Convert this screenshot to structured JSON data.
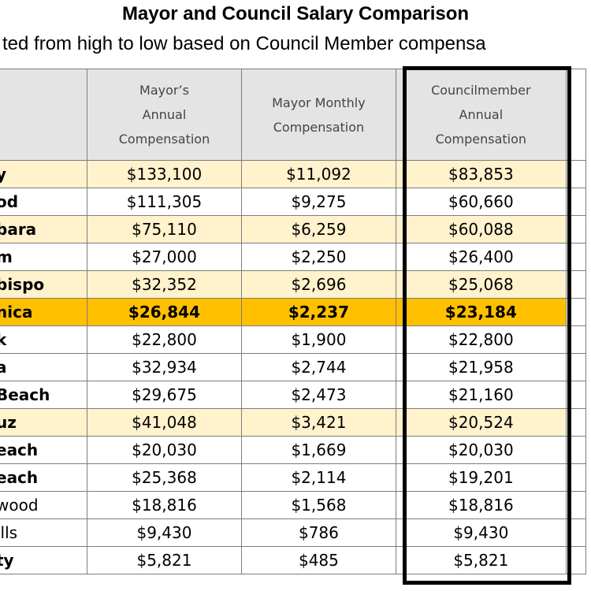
{
  "title": "Mayor and Council Salary Comparison",
  "subtitle": "ted from high to low based on Council Member compensa",
  "columns": {
    "mayor_annual": "Mayor’s Annual Compensation",
    "mayor_monthly": "Mayor Monthly Compensation",
    "council_annual": "Councilmember Annual Compensation"
  },
  "rows": [
    {
      "city": "y",
      "mayor_annual": "$133,100",
      "mayor_monthly": "$11,092",
      "council_annual": "$83,853"
    },
    {
      "city": "od",
      "mayor_annual": "$111,305",
      "mayor_monthly": "$9,275",
      "council_annual": "$60,660"
    },
    {
      "city": "bara",
      "mayor_annual": "$75,110",
      "mayor_monthly": "$6,259",
      "council_annual": "$60,088"
    },
    {
      "city": "m",
      "mayor_annual": "$27,000",
      "mayor_monthly": "$2,250",
      "council_annual": "$26,400"
    },
    {
      "city": "bispo",
      "mayor_annual": "$32,352",
      "mayor_monthly": "$2,696",
      "council_annual": "$25,068"
    },
    {
      "city": "nica",
      "mayor_annual": "$26,844",
      "mayor_monthly": "$2,237",
      "council_annual": "$23,184"
    },
    {
      "city": "k",
      "mayor_annual": "$22,800",
      "mayor_monthly": "$1,900",
      "council_annual": "$22,800"
    },
    {
      "city": "a",
      "mayor_annual": "$32,934",
      "mayor_monthly": "$2,744",
      "council_annual": "$21,958"
    },
    {
      "city": "Beach",
      "mayor_annual": "$29,675",
      "mayor_monthly": "$2,473",
      "council_annual": "$21,160"
    },
    {
      "city": "uz",
      "mayor_annual": "$41,048",
      "mayor_monthly": "$3,421",
      "council_annual": "$20,524"
    },
    {
      "city": "each",
      "mayor_annual": "$20,030",
      "mayor_monthly": "$1,669",
      "council_annual": "$20,030"
    },
    {
      "city": "each",
      "mayor_annual": "$25,368",
      "mayor_monthly": "$2,114",
      "council_annual": "$19,201"
    },
    {
      "city": "wood",
      "mayor_annual": "$18,816",
      "mayor_monthly": "$1,568",
      "council_annual": "$18,816"
    },
    {
      "city": "ills",
      "mayor_annual": "$9,430",
      "mayor_monthly": "$786",
      "council_annual": "$9,430"
    },
    {
      "city": "ty",
      "mayor_annual": "$5,821",
      "mayor_monthly": "$485",
      "council_annual": "$5,821"
    }
  ]
}
